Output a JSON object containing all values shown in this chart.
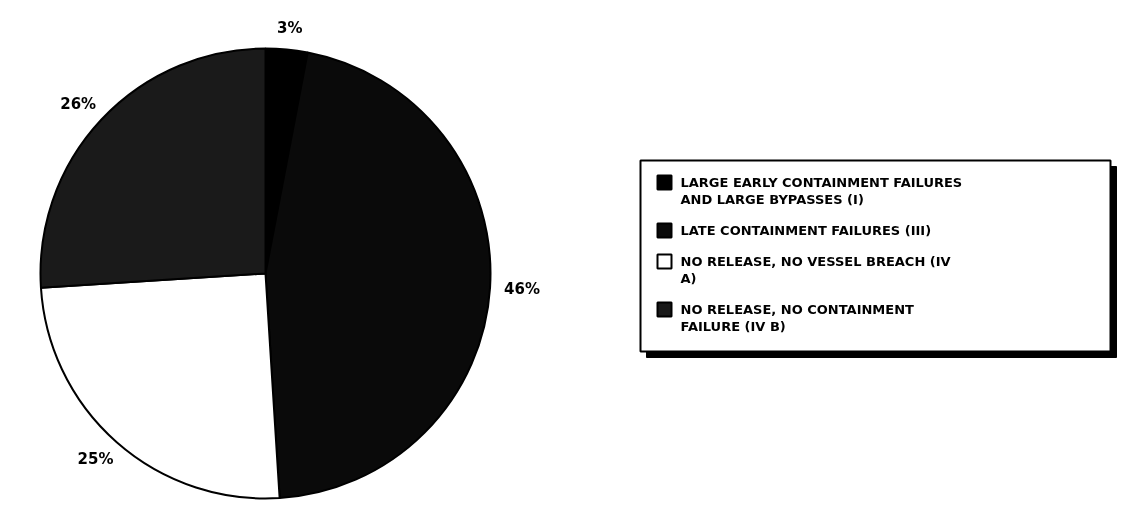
{
  "chart_data": {
    "type": "pie",
    "categories": [
      "LARGE EARLY CONTAINMENT FAILURES AND LARGE BYPASSES (I)",
      "LATE CONTAINMENT FAILURES (III)",
      "NO RELEASE, NO VESSEL BREACH (IV A)",
      "NO RELEASE, NO CONTAINMENT FAILURE (IV B)"
    ],
    "values": [
      3,
      46,
      25,
      26
    ],
    "colors": [
      "#000000",
      "#0a0a0a",
      "#ffffff",
      "#1a1a1a"
    ],
    "value_labels": [
      "3%",
      "46%",
      "25%",
      "26%"
    ],
    "legend": "right"
  }
}
